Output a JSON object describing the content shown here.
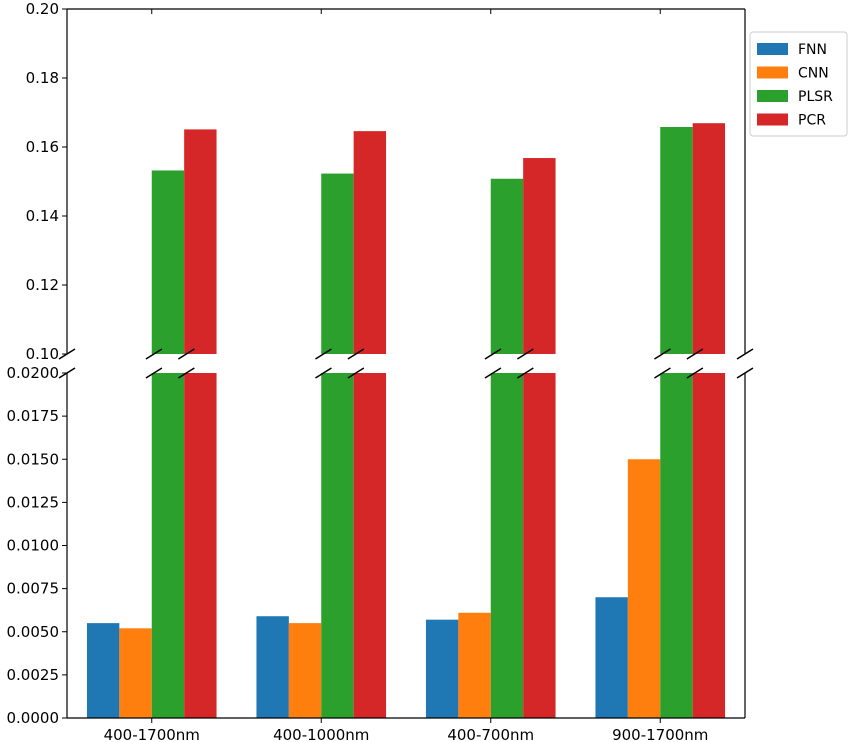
{
  "chart_data": {
    "type": "bar",
    "title": "",
    "xlabel": "",
    "ylabel": "",
    "broken_axis": true,
    "categories": [
      "400-1700nm",
      "400-1000nm",
      "400-700nm",
      "900-1700nm"
    ],
    "series": [
      {
        "name": "FNN",
        "color": "#1f77b4",
        "values": [
          0.0055,
          0.0059,
          0.0057,
          0.007
        ]
      },
      {
        "name": "CNN",
        "color": "#ff7f0e",
        "values": [
          0.0052,
          0.0055,
          0.0061,
          0.015
        ]
      },
      {
        "name": "PLSR",
        "color": "#2ca02c",
        "values": [
          0.1532,
          0.1523,
          0.1508,
          0.1658
        ]
      },
      {
        "name": "PCR",
        "color": "#d62728",
        "values": [
          0.1651,
          0.1646,
          0.1568,
          0.1669
        ]
      }
    ],
    "upper_axis": {
      "ylim": [
        0.1,
        0.2
      ],
      "ticks": [
        "0.10",
        "0.12",
        "0.14",
        "0.16",
        "0.18",
        "0.20"
      ]
    },
    "lower_axis": {
      "ylim": [
        0.0,
        0.02
      ],
      "ticks": [
        "0.0000",
        "0.0025",
        "0.0050",
        "0.0075",
        "0.0100",
        "0.0125",
        "0.0150",
        "0.0175",
        "0.0200"
      ]
    },
    "legend": {
      "position": "top-right"
    },
    "grid": false
  }
}
